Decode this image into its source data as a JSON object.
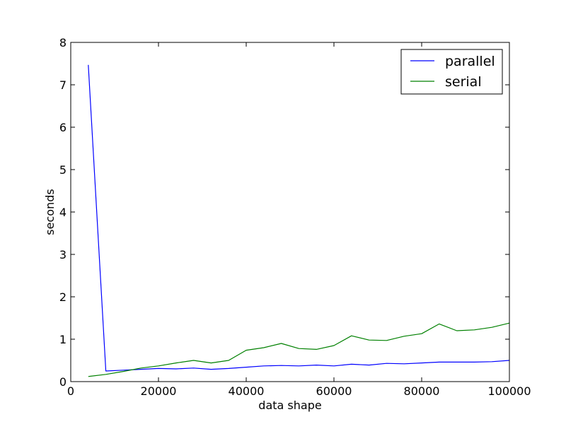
{
  "chart_data": {
    "type": "line",
    "title": "",
    "xlabel": "data shape",
    "ylabel": "seconds",
    "xlim": [
      0,
      100000
    ],
    "ylim": [
      0,
      8
    ],
    "xticks": [
      0,
      20000,
      40000,
      60000,
      80000,
      100000
    ],
    "yticks": [
      0,
      1,
      2,
      3,
      4,
      5,
      6,
      7,
      8
    ],
    "grid": false,
    "legend_position": "top-right",
    "x": [
      4000,
      8000,
      12000,
      16000,
      20000,
      24000,
      28000,
      32000,
      36000,
      40000,
      44000,
      48000,
      52000,
      56000,
      60000,
      64000,
      68000,
      72000,
      76000,
      80000,
      84000,
      88000,
      92000,
      96000,
      100000
    ],
    "series": [
      {
        "name": "parallel",
        "color": "#0000ff",
        "values": [
          7.47,
          0.25,
          0.27,
          0.29,
          0.31,
          0.3,
          0.32,
          0.29,
          0.31,
          0.34,
          0.37,
          0.38,
          0.37,
          0.39,
          0.37,
          0.41,
          0.39,
          0.43,
          0.42,
          0.44,
          0.46,
          0.46,
          0.46,
          0.47,
          0.5
        ]
      },
      {
        "name": "serial",
        "color": "#008000",
        "values": [
          0.12,
          0.17,
          0.24,
          0.32,
          0.37,
          0.44,
          0.5,
          0.44,
          0.5,
          0.74,
          0.8,
          0.9,
          0.78,
          0.76,
          0.85,
          1.08,
          0.98,
          0.97,
          1.07,
          1.13,
          1.36,
          1.2,
          1.22,
          1.28,
          1.38
        ]
      }
    ]
  }
}
